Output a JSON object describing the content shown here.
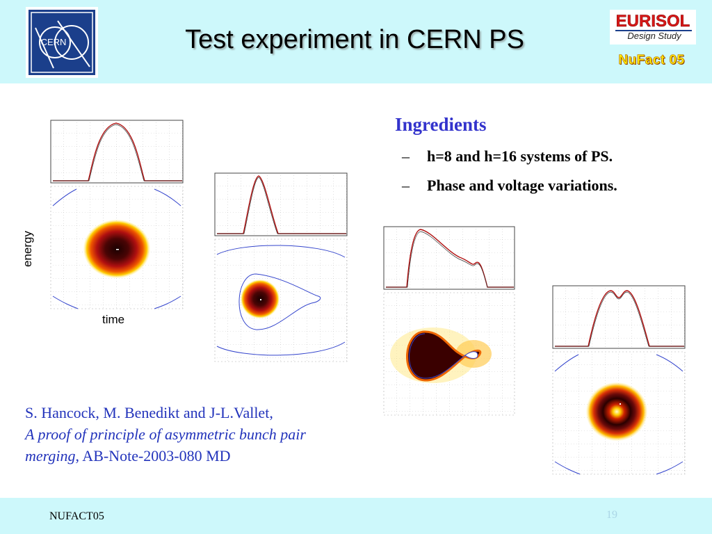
{
  "header": {
    "title": "Test experiment in CERN PS",
    "cern_logo_text": "CERN",
    "eurisol_logo_text": "EURISOL",
    "eurisol_sub_text": "Design Study",
    "nufact_badge": "NuFact 05"
  },
  "ingredients": {
    "heading": "Ingredients",
    "items": [
      "h=8 and h=16 systems of PS.",
      "Phase and voltage variations."
    ]
  },
  "reference": {
    "authors": "S. Hancock, M. Benedikt and J-L.Vallet,",
    "title": "A proof of principle of asymmetric bunch pair merging",
    "note": ", AB-Note-2003-080 MD"
  },
  "plots": {
    "ylabel": "energy",
    "xlabel": "time"
  },
  "footer": {
    "left": "NUFACT05",
    "page_number": "19"
  },
  "colors": {
    "header_bg": "#cdf8fb",
    "accent_blue": "#3333cc",
    "profile_red": "#b01010",
    "separatrix_blue": "#3344cc"
  }
}
